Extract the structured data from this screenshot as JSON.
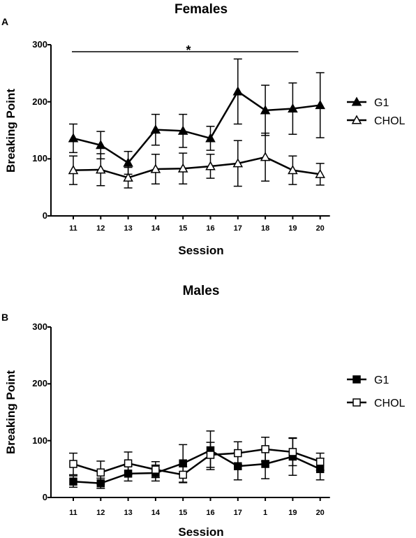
{
  "chart_data": [
    {
      "type": "line",
      "panel_label": "A",
      "title": "Females",
      "xlabel": "Session",
      "ylabel": "Breaking Point",
      "ylim": [
        0,
        300
      ],
      "yticks": [
        "0",
        "100",
        "200",
        "300"
      ],
      "categories": [
        "11",
        "12",
        "13",
        "14",
        "15",
        "16",
        "17",
        "18",
        "19",
        "20"
      ],
      "significance": "*",
      "significance_span": [
        "11",
        "19"
      ],
      "legend_position": "right",
      "series": [
        {
          "name": "G1",
          "marker": "filled-triangle",
          "values": [
            136,
            124,
            93,
            151,
            149,
            136,
            218,
            185,
            188,
            194
          ],
          "errors": [
            25,
            24,
            20,
            27,
            29,
            21,
            57,
            44,
            45,
            57
          ]
        },
        {
          "name": "CHOL",
          "marker": "open-triangle",
          "values": [
            80,
            81,
            67,
            82,
            83,
            87,
            92,
            103,
            80,
            73
          ],
          "errors": [
            25,
            28,
            18,
            26,
            27,
            21,
            40,
            42,
            25,
            19
          ]
        }
      ]
    },
    {
      "type": "line",
      "panel_label": "B",
      "title": "Males",
      "xlabel": "Session",
      "ylabel": "Breaking Point",
      "ylim": [
        0,
        300
      ],
      "yticks": [
        "0",
        "100",
        "200",
        "300"
      ],
      "categories": [
        "11",
        "12",
        "13",
        "14",
        "15",
        "16",
        "17",
        "1",
        "19",
        "20"
      ],
      "legend_position": "right",
      "series": [
        {
          "name": "G1",
          "marker": "filled-square",
          "values": [
            28,
            25,
            42,
            43,
            60,
            83,
            55,
            59,
            72,
            50
          ],
          "errors": [
            10,
            9,
            13,
            14,
            33,
            34,
            24,
            26,
            33,
            19
          ]
        },
        {
          "name": "CHOL",
          "marker": "open-square",
          "values": [
            59,
            44,
            60,
            49,
            40,
            75,
            78,
            85,
            80,
            63
          ],
          "errors": [
            19,
            20,
            20,
            14,
            14,
            22,
            20,
            21,
            24,
            15
          ]
        }
      ]
    }
  ]
}
